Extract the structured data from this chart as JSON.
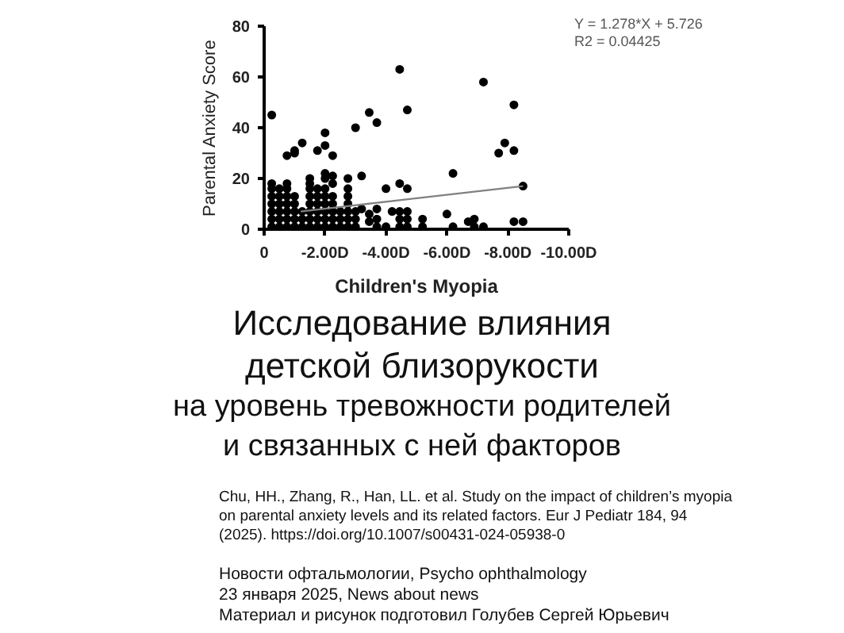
{
  "chart_data": {
    "type": "scatter",
    "title": "Исследование влияния детской близорукости",
    "subtitle": "на уровень тревожности родителей и связанных с ней факторов",
    "xlabel": "Children's Myopia",
    "ylabel": "Parental Anxiety Score",
    "xlim": [
      0,
      -10
    ],
    "ylim": [
      0,
      80
    ],
    "xticks": [
      0,
      {
        "value": -2,
        "label": "-2.00D"
      },
      {
        "value": -4,
        "label": "-4.00D"
      },
      {
        "value": -6,
        "label": "-6.00D"
      },
      {
        "value": -8,
        "label": "-8.00D"
      },
      {
        "value": -10,
        "label": "-10.00D"
      }
    ],
    "yticks": [
      0,
      20,
      40,
      60,
      80
    ],
    "grid": false,
    "series": [
      {
        "marker": "circle",
        "color": "#000000",
        "x": [
          -0.25,
          -0.25,
          -0.25,
          -0.25,
          -0.25,
          -0.25,
          -0.25,
          -0.25,
          -0.5,
          -0.5,
          -0.5,
          -0.5,
          -0.5,
          -0.5,
          -0.75,
          -0.75,
          -0.75,
          -0.75,
          -0.75,
          -0.75,
          -0.75,
          -0.75,
          -1.0,
          -1.0,
          -1.0,
          -1.0,
          -1.0,
          -1.0,
          -1.0,
          -1.25,
          -1.25,
          -1.25,
          -1.25,
          -1.5,
          -1.5,
          -1.5,
          -1.5,
          -1.5,
          -1.5,
          -1.5,
          -1.5,
          -1.75,
          -1.75,
          -1.75,
          -1.75,
          -1.75,
          -1.75,
          -1.75,
          -2.0,
          -2.0,
          -2.0,
          -2.0,
          -2.0,
          -2.0,
          -2.0,
          -2.0,
          -2.0,
          -2.0,
          -2.25,
          -2.25,
          -2.25,
          -2.25,
          -2.25,
          -2.25,
          -2.25,
          -2.25,
          -2.5,
          -2.5,
          -2.5,
          -2.75,
          -2.75,
          -2.75,
          -2.75,
          -2.75,
          -2.75,
          -2.75,
          -3.0,
          -3.0,
          -3.0,
          -3.0,
          -3.2,
          -3.2,
          -3.45,
          -3.45,
          -3.45,
          -3.7,
          -3.7,
          -3.7,
          -3.7,
          -4.0,
          -4.0,
          -4.2,
          -4.45,
          -4.45,
          -4.45,
          -4.45,
          -4.45,
          -4.7,
          -4.7,
          -4.7,
          -4.7,
          -4.7,
          -5.2,
          -5.2,
          -6.0,
          -6.2,
          -6.2,
          -6.7,
          -6.9,
          -6.9,
          -7.2,
          -7.2,
          -7.7,
          -7.9,
          -8.2,
          -8.2,
          -8.2,
          -8.5,
          -8.5
        ],
        "values": [
          1,
          4,
          7,
          10,
          13,
          16,
          18,
          45,
          1,
          4,
          7,
          10,
          13,
          16,
          1,
          4,
          7,
          10,
          13,
          16,
          18,
          29,
          1,
          4,
          7,
          10,
          13,
          30,
          31,
          1,
          4,
          7,
          34,
          1,
          4,
          7,
          10,
          13,
          16,
          18,
          20,
          1,
          4,
          7,
          10,
          13,
          16,
          31,
          1,
          4,
          7,
          10,
          13,
          16,
          20,
          22,
          33,
          38,
          1,
          4,
          7,
          10,
          13,
          18,
          21,
          29,
          1,
          4,
          7,
          1,
          4,
          7,
          10,
          13,
          16,
          20,
          1,
          4,
          7,
          40,
          8,
          21,
          3,
          6,
          46,
          1,
          4,
          8,
          42,
          1,
          16,
          7,
          1,
          4,
          7,
          18,
          63,
          1,
          4,
          7,
          16,
          47,
          1,
          4,
          6,
          1,
          22,
          3,
          1,
          4,
          1,
          58,
          30,
          34,
          31,
          49,
          3,
          17,
          3
        ]
      },
      {
        "type": "line",
        "marker": "none",
        "color": "#808080",
        "x": [
          -1.2,
          -8.5
        ],
        "values": [
          7,
          17
        ]
      }
    ],
    "annotations": [
      "Y = 1.278*X + 5.726",
      "R2 = 0.04425",
      "Chu, HH., Zhang, R., Han, LL. et al. Study on the impact of children’s myopia on parental anxiety levels and its related factors. Eur J Pediatr 184, 94 (2025). https://doi.org/10.1007/s00431-024-05938-0",
      "Новости офтальмологии, Psycho ophthalmology",
      "23 января 2025, News about news",
      "Материал и рисунок подготовил Голубев Сергей Юрьевич"
    ]
  }
}
